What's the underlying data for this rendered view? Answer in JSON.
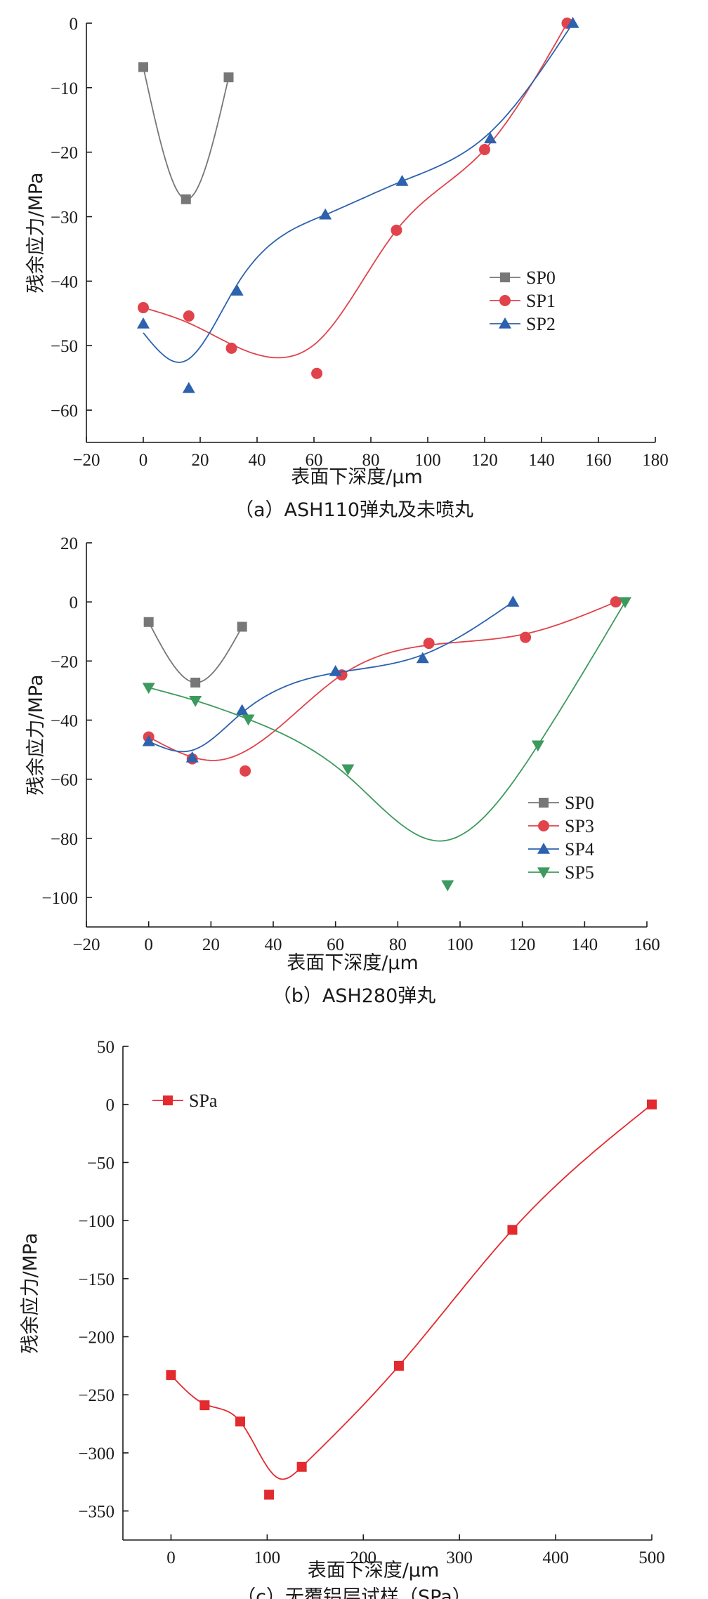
{
  "chart_data": [
    {
      "type": "scatter",
      "caption": "（a）ASH110弹丸及未喷丸",
      "xlabel": "表面下深度/μm",
      "ylabel": "残余应力/MPa",
      "xlim": [
        -20,
        180
      ],
      "ylim": [
        -65,
        0
      ],
      "xticks": [
        -20,
        0,
        20,
        40,
        60,
        80,
        100,
        120,
        140,
        160,
        180
      ],
      "yticks": [
        0,
        -10,
        -20,
        -30,
        -40,
        -50,
        -60
      ],
      "legend_position": "center-right",
      "series": [
        {
          "name": "SP0",
          "color": "#777777",
          "marker": "square",
          "x": [
            0,
            15,
            30
          ],
          "y": [
            -6.8,
            -27.3,
            -8.4
          ]
        },
        {
          "name": "SP1",
          "color": "#e0434b",
          "marker": "circle",
          "x": [
            0,
            16,
            31,
            61,
            89,
            120,
            149
          ],
          "y": [
            -44.1,
            -45.4,
            -50.4,
            -54.3,
            -32.1,
            -19.6,
            0
          ]
        },
        {
          "name": "SP2",
          "color": "#2c62ae",
          "marker": "triangle-up",
          "x": [
            0,
            16,
            33,
            64,
            91,
            122,
            151
          ],
          "y": [
            -46.6,
            -56.6,
            -41.5,
            -29.7,
            -24.5,
            -17.9,
            0
          ]
        }
      ]
    },
    {
      "type": "scatter",
      "caption": "（b）ASH280弹丸",
      "xlabel": "表面下深度/μm",
      "ylabel": "残余应力/MPa",
      "xlim": [
        -20,
        160
      ],
      "ylim": [
        -110,
        20
      ],
      "xticks": [
        -20,
        0,
        20,
        40,
        60,
        80,
        100,
        120,
        140,
        160
      ],
      "yticks": [
        20,
        0,
        -20,
        -40,
        -60,
        -80,
        -100
      ],
      "legend_position": "bottom-right",
      "series": [
        {
          "name": "SP0",
          "color": "#777777",
          "marker": "square",
          "x": [
            0,
            15,
            30
          ],
          "y": [
            -6.8,
            -27.3,
            -8.4
          ]
        },
        {
          "name": "SP3",
          "color": "#e0434b",
          "marker": "circle",
          "x": [
            0,
            14,
            31,
            62,
            90,
            121,
            150
          ],
          "y": [
            -45.7,
            -53.1,
            -57.2,
            -24.7,
            -14.0,
            -12.0,
            0
          ]
        },
        {
          "name": "SP4",
          "color": "#2c62ae",
          "marker": "triangle-up",
          "x": [
            0,
            14,
            30,
            60,
            88,
            117
          ],
          "y": [
            -47.2,
            -52.7,
            -36.7,
            -23.5,
            -19.1,
            0
          ]
        },
        {
          "name": "SP5",
          "color": "#3d9a5e",
          "marker": "triangle-down",
          "x": [
            0,
            15,
            32,
            64,
            96,
            125,
            153
          ],
          "y": [
            -29.0,
            -33.4,
            -39.7,
            -56.6,
            -95.8,
            -48.5,
            0
          ]
        }
      ]
    },
    {
      "type": "line",
      "caption": "（c）无覆铝层试样（SPa）",
      "xlabel": "表面下深度/μm",
      "ylabel": "残余应力/MPa",
      "xlim": [
        -50,
        500
      ],
      "ylim": [
        -375,
        50
      ],
      "xticks": [
        0,
        100,
        200,
        300,
        400,
        500
      ],
      "yticks": [
        50,
        0,
        -50,
        -100,
        -150,
        -200,
        -250,
        -300,
        -350
      ],
      "legend_position": "top-left",
      "series": [
        {
          "name": "SPa",
          "color": "#e22a2f",
          "marker": "square",
          "x": [
            0,
            35,
            72,
            102,
            136,
            237,
            355,
            500
          ],
          "y": [
            -233,
            -259,
            -273,
            -336,
            -312,
            -225,
            -108,
            0
          ]
        }
      ]
    }
  ]
}
